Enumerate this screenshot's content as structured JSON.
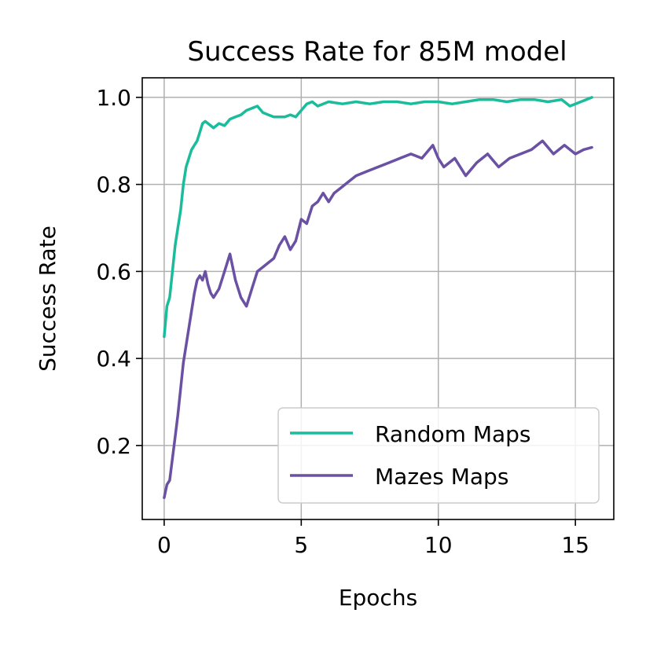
{
  "chart_data": {
    "type": "line",
    "title": "Success Rate for 85M model",
    "xlabel": "Epochs",
    "ylabel": "Success Rate",
    "xlim": [
      -0.8,
      16.4
    ],
    "ylim": [
      0.03,
      1.045
    ],
    "xticks": [
      0,
      5,
      10,
      15
    ],
    "yticks": [
      0.2,
      0.4,
      0.6,
      0.8,
      1.0
    ],
    "xtick_labels": [
      "0",
      "5",
      "10",
      "15"
    ],
    "ytick_labels": [
      "0.2",
      "0.4",
      "0.6",
      "0.8",
      "1.0"
    ],
    "grid": true,
    "legend_position": "lower-right",
    "series": [
      {
        "name": "Random Maps",
        "color": "#1abc9c",
        "x": [
          0,
          0.1,
          0.2,
          0.3,
          0.4,
          0.5,
          0.6,
          0.7,
          0.8,
          0.9,
          1.0,
          1.1,
          1.2,
          1.3,
          1.4,
          1.5,
          1.6,
          1.8,
          2.0,
          2.2,
          2.4,
          2.6,
          2.8,
          3.0,
          3.2,
          3.4,
          3.6,
          3.8,
          4.0,
          4.2,
          4.4,
          4.6,
          4.8,
          5.0,
          5.2,
          5.4,
          5.6,
          5.8,
          6.0,
          6.5,
          7.0,
          7.5,
          8.0,
          8.5,
          9.0,
          9.5,
          10.0,
          10.5,
          11.0,
          11.5,
          12.0,
          12.5,
          13.0,
          13.5,
          14.0,
          14.5,
          14.8,
          15.0,
          15.2,
          15.4,
          15.6
        ],
        "values": [
          0.45,
          0.52,
          0.54,
          0.6,
          0.66,
          0.7,
          0.74,
          0.8,
          0.84,
          0.86,
          0.88,
          0.89,
          0.9,
          0.92,
          0.94,
          0.945,
          0.94,
          0.93,
          0.94,
          0.935,
          0.95,
          0.955,
          0.96,
          0.97,
          0.975,
          0.98,
          0.965,
          0.96,
          0.955,
          0.955,
          0.955,
          0.96,
          0.955,
          0.97,
          0.985,
          0.99,
          0.98,
          0.985,
          0.99,
          0.985,
          0.99,
          0.985,
          0.99,
          0.99,
          0.985,
          0.99,
          0.99,
          0.985,
          0.99,
          0.995,
          0.995,
          0.99,
          0.995,
          0.995,
          0.99,
          0.995,
          0.98,
          0.985,
          0.99,
          0.995,
          1.0
        ]
      },
      {
        "name": "Mazes Maps",
        "color": "#6a51a3",
        "x": [
          0,
          0.1,
          0.2,
          0.3,
          0.4,
          0.5,
          0.6,
          0.7,
          0.8,
          0.9,
          1.0,
          1.1,
          1.2,
          1.3,
          1.4,
          1.5,
          1.6,
          1.7,
          1.8,
          2.0,
          2.2,
          2.4,
          2.6,
          2.8,
          3.0,
          3.2,
          3.4,
          3.6,
          3.8,
          4.0,
          4.2,
          4.4,
          4.6,
          4.8,
          5.0,
          5.2,
          5.4,
          5.6,
          5.8,
          6.0,
          6.2,
          6.4,
          6.6,
          6.8,
          7.0,
          7.4,
          7.8,
          8.2,
          8.6,
          9.0,
          9.4,
          9.8,
          10.0,
          10.2,
          10.6,
          11.0,
          11.4,
          11.8,
          12.2,
          12.6,
          13.0,
          13.4,
          13.8,
          14.2,
          14.6,
          15.0,
          15.3,
          15.6
        ],
        "values": [
          0.08,
          0.11,
          0.12,
          0.17,
          0.22,
          0.27,
          0.33,
          0.39,
          0.43,
          0.47,
          0.51,
          0.55,
          0.58,
          0.59,
          0.58,
          0.6,
          0.57,
          0.55,
          0.54,
          0.56,
          0.6,
          0.64,
          0.58,
          0.54,
          0.52,
          0.56,
          0.6,
          0.61,
          0.62,
          0.63,
          0.66,
          0.68,
          0.65,
          0.67,
          0.72,
          0.71,
          0.75,
          0.76,
          0.78,
          0.76,
          0.78,
          0.79,
          0.8,
          0.81,
          0.82,
          0.83,
          0.84,
          0.85,
          0.86,
          0.87,
          0.86,
          0.89,
          0.86,
          0.84,
          0.86,
          0.82,
          0.85,
          0.87,
          0.84,
          0.86,
          0.87,
          0.88,
          0.9,
          0.87,
          0.89,
          0.87,
          0.88,
          0.885
        ]
      }
    ]
  }
}
